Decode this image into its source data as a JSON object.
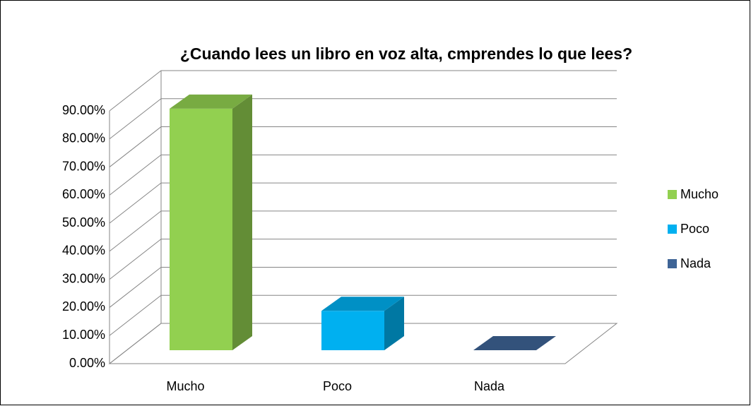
{
  "chart_data": {
    "type": "bar3d",
    "title": "¿Cuando lees un  libro en voz alta, cmprendes lo que lees?",
    "categories": [
      "Mucho",
      "Poco",
      "Nada"
    ],
    "values": [
      86,
      14,
      0
    ],
    "colors": [
      "#92d050",
      "#00b0f0",
      "#3e6496"
    ],
    "ylim": [
      0,
      90
    ],
    "yticks": [
      {
        "value": 0,
        "label": "0.00%"
      },
      {
        "value": 10,
        "label": "10.00%"
      },
      {
        "value": 20,
        "label": "20.00%"
      },
      {
        "value": 30,
        "label": "30.00%"
      },
      {
        "value": 40,
        "label": "40.00%"
      },
      {
        "value": 50,
        "label": "50.00%"
      },
      {
        "value": 60,
        "label": "60.00%"
      },
      {
        "value": 70,
        "label": "70.00%"
      },
      {
        "value": 80,
        "label": "80.00%"
      },
      {
        "value": 90,
        "label": "90.00%"
      }
    ],
    "grid": true,
    "legend": "right"
  }
}
